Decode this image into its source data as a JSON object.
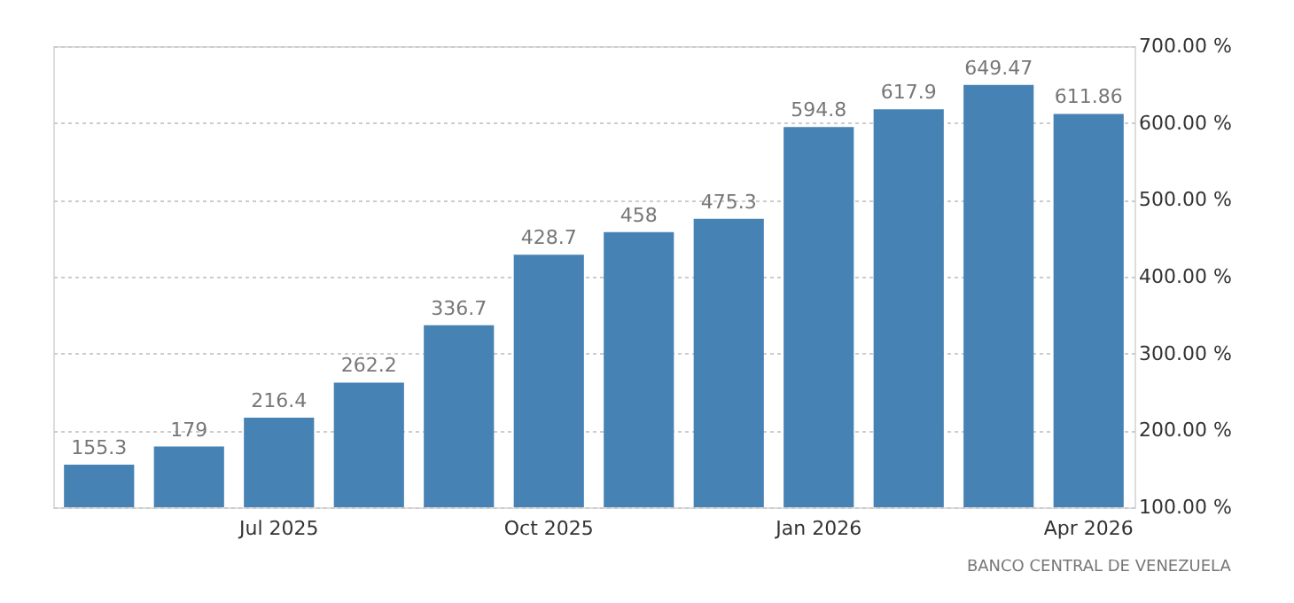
{
  "chart_data": {
    "type": "bar",
    "categories": [
      null,
      null,
      "Jul 2025",
      null,
      null,
      "Oct 2025",
      null,
      null,
      "Jan 2026",
      null,
      null,
      "Apr 2026"
    ],
    "values": [
      155.3,
      179,
      216.4,
      262.2,
      336.7,
      428.7,
      458,
      475.3,
      594.8,
      617.9,
      649.47,
      611.86
    ],
    "color": "#4682b4",
    "data_labels": true,
    "grid": "y",
    "ylim": [
      100,
      700
    ],
    "yticks": [
      {
        "value": 100,
        "label": "100.00 %"
      },
      {
        "value": 200,
        "label": "200.00 %"
      },
      {
        "value": 300,
        "label": "300.00 %"
      },
      {
        "value": 400,
        "label": "400.00 %"
      },
      {
        "value": 500,
        "label": "500.00 %"
      },
      {
        "value": 600,
        "label": "600.00 %"
      },
      {
        "value": 700,
        "label": "700.00 %"
      }
    ],
    "annotations": [
      "BANCO CENTRAL DE VENEZUELA"
    ]
  }
}
